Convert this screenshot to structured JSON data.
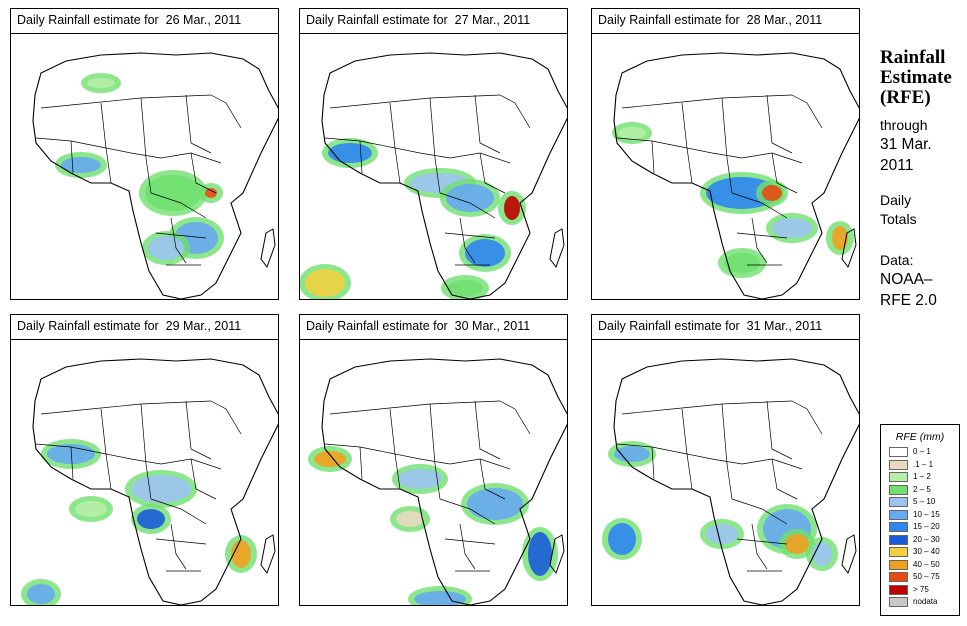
{
  "panels": [
    {
      "title_prefix": "Daily Rainfall estimate for",
      "date": "26 Mar., 2011"
    },
    {
      "title_prefix": "Daily Rainfall estimate for",
      "date": "27 Mar., 2011"
    },
    {
      "title_prefix": "Daily Rainfall estimate for",
      "date": "28 Mar., 2011"
    },
    {
      "title_prefix": "Daily Rainfall estimate for",
      "date": "29 Mar., 2011"
    },
    {
      "title_prefix": "Daily Rainfall estimate for",
      "date": "30 Mar., 2011"
    },
    {
      "title_prefix": "Daily Rainfall estimate for",
      "date": "31 Mar., 2011"
    }
  ],
  "side": {
    "title_line1": "Rainfall",
    "title_line2": "Estimate",
    "title_line3": "(RFE)",
    "through": "through",
    "end_date_line1": "31 Mar.",
    "end_date_line2": "2011",
    "daily": "Daily",
    "totals": "Totals",
    "data_label": "Data:",
    "data_source_line1": "NOAA–",
    "data_source_line2": "RFE 2.0"
  },
  "legend": {
    "title": "RFE (mm)",
    "items": [
      {
        "label": "0 – 1",
        "color": "#ffffff"
      },
      {
        "label": ".1 – 1",
        "color": "#e8d9c0"
      },
      {
        "label": "1 – 2",
        "color": "#b6f0a6"
      },
      {
        "label": "2 – 5",
        "color": "#6fe06f"
      },
      {
        "label": "5 – 10",
        "color": "#9cc4f0"
      },
      {
        "label": "10 – 15",
        "color": "#66aaf0"
      },
      {
        "label": "15 – 20",
        "color": "#2f86f0"
      },
      {
        "label": "20 – 30",
        "color": "#1a5cd8"
      },
      {
        "label": "30 – 40",
        "color": "#f0d040"
      },
      {
        "label": "40 – 50",
        "color": "#f0a020"
      },
      {
        "label": "50 – 75",
        "color": "#e84a10"
      },
      {
        "label": "> 75",
        "color": "#c00000"
      },
      {
        "label": "nodata",
        "color": "#c8c8c8"
      }
    ]
  }
}
